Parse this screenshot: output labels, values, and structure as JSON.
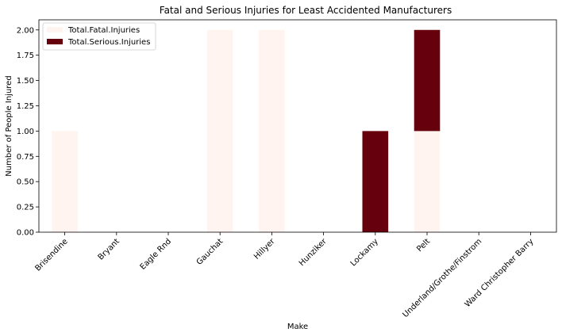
{
  "chart_data": {
    "type": "bar",
    "stacked": true,
    "title": "Fatal and Serious Injuries for Least Accidented Manufacturers",
    "xlabel": "Make",
    "ylabel": "Number of People Injured",
    "ylim": [
      0,
      2.1
    ],
    "yticks": [
      "0.00",
      "0.25",
      "0.50",
      "0.75",
      "1.00",
      "1.25",
      "1.50",
      "1.75",
      "2.00"
    ],
    "ytick_values": [
      0,
      0.25,
      0.5,
      0.75,
      1.0,
      1.25,
      1.5,
      1.75,
      2.0
    ],
    "categories": [
      "Brisendine",
      "Bryant",
      "Eagle Rnd",
      "Gauchat",
      "Hillyer",
      "Hunziker",
      "Lockamy",
      "Pelt",
      "Underland/Grothe/Finstrom",
      "Ward Christopher Barry"
    ],
    "series": [
      {
        "name": "Total.Fatal.Injuries",
        "color": "#fff4ef",
        "values": [
          1,
          0,
          0,
          2,
          2,
          0,
          0,
          1,
          0,
          0
        ]
      },
      {
        "name": "Total.Serious.Injuries",
        "color": "#67000d",
        "values": [
          0,
          0,
          0,
          0,
          0,
          0,
          1,
          1,
          0,
          0
        ]
      }
    ],
    "legend_position": "top-left",
    "grid": false
  }
}
